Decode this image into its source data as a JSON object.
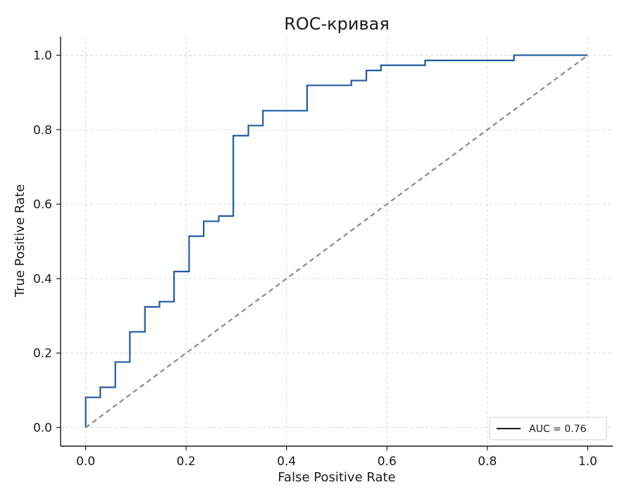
{
  "chart_data": {
    "type": "line",
    "title": "ROC-кривая",
    "xlabel": "False Positive Rate",
    "ylabel": "True Positive Rate",
    "xlim": [
      -0.05,
      1.05
    ],
    "ylim": [
      -0.05,
      1.05
    ],
    "xticks": [
      "0.0",
      "0.2",
      "0.4",
      "0.6",
      "0.8",
      "1.0"
    ],
    "yticks": [
      "0.0",
      "0.2",
      "0.4",
      "0.6",
      "0.8",
      "1.0"
    ],
    "grid": true,
    "legend_position": "bottom-right",
    "series": [
      {
        "name": "AUC = 0.76",
        "color": "#1f5ba0",
        "style": "solid-step",
        "x": [
          0.0,
          0.0,
          0.029,
          0.029,
          0.059,
          0.059,
          0.088,
          0.088,
          0.118,
          0.118,
          0.147,
          0.147,
          0.176,
          0.176,
          0.206,
          0.206,
          0.235,
          0.235,
          0.265,
          0.265,
          0.294,
          0.294,
          0.324,
          0.324,
          0.353,
          0.353,
          0.441,
          0.441,
          0.529,
          0.529,
          0.559,
          0.559,
          0.588,
          0.588,
          0.676,
          0.676,
          0.853,
          0.853,
          1.0
        ],
        "y": [
          0.0,
          0.081,
          0.081,
          0.108,
          0.108,
          0.176,
          0.176,
          0.257,
          0.257,
          0.324,
          0.324,
          0.338,
          0.338,
          0.419,
          0.419,
          0.514,
          0.514,
          0.554,
          0.554,
          0.568,
          0.568,
          0.784,
          0.784,
          0.811,
          0.811,
          0.851,
          0.851,
          0.919,
          0.919,
          0.932,
          0.932,
          0.959,
          0.959,
          0.973,
          0.973,
          0.986,
          0.986,
          1.0,
          1.0
        ]
      },
      {
        "name": "",
        "color": "#808080",
        "style": "dashed",
        "x": [
          0.0,
          1.0
        ],
        "y": [
          0.0,
          1.0
        ]
      }
    ],
    "legend": [
      {
        "label": "AUC = 0.76",
        "color": "#1a1a1a"
      }
    ]
  }
}
